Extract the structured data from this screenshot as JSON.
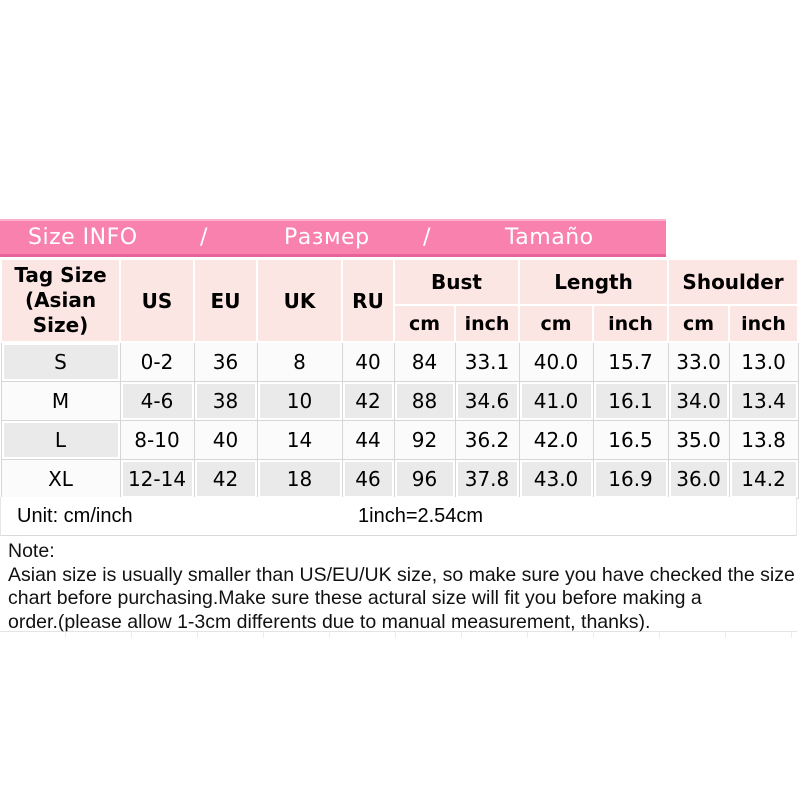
{
  "title_bar": {
    "segments": [
      "Size INFO",
      "/",
      "Размер",
      "/",
      "Tamaño"
    ]
  },
  "table": {
    "header": {
      "tag_size_line1": "Tag Size",
      "tag_size_line2": "(Asian Size)",
      "size_cols": [
        "US",
        "EU",
        "UK",
        "RU"
      ],
      "measure_groups": [
        "Bust",
        "Length",
        "Shoulder"
      ],
      "unit_cols": [
        "cm",
        "inch",
        "cm",
        "inch",
        "cm",
        "inch"
      ]
    },
    "rows": [
      {
        "tag": "S",
        "values": [
          "0-2",
          "36",
          "8",
          "40",
          "84",
          "33.1",
          "40.0",
          "15.7",
          "33.0",
          "13.0"
        ]
      },
      {
        "tag": "M",
        "values": [
          "4-6",
          "38",
          "10",
          "42",
          "88",
          "34.6",
          "41.0",
          "16.1",
          "34.0",
          "13.4"
        ]
      },
      {
        "tag": "L",
        "values": [
          "8-10",
          "40",
          "14",
          "44",
          "92",
          "36.2",
          "42.0",
          "16.5",
          "35.0",
          "13.8"
        ]
      },
      {
        "tag": "XL",
        "values": [
          "12-14",
          "42",
          "18",
          "46",
          "96",
          "37.8",
          "43.0",
          "16.9",
          "36.0",
          "14.2"
        ]
      }
    ]
  },
  "unit_row": {
    "unit_label": "Unit: cm/inch",
    "conversion": "1inch=2.54cm"
  },
  "note": {
    "heading": "Note:",
    "lines": [
      "Asian size is usually smaller than US/EU/UK size, so make sure you have checked the size",
      "chart before purchasing.Make sure these actural size will fit you before making a",
      "order.(please allow 1-3cm differents due to manual measurement, thanks)."
    ]
  },
  "colors": {
    "title_bar_pink": "#F981AD",
    "title_bar_top_edge": "#FBB0CD",
    "title_bar_bottom_edge": "#E7639A",
    "header_cell_pink": "#FCE6E3",
    "shaded_cell_gray": "#EAEAEB",
    "plain_cell_white": "#FBFBFB",
    "grid_border": "#D6D6D6",
    "text": "#000000"
  },
  "chart_data": {
    "type": "table",
    "title": "Size INFO / Размер / Tamaño",
    "columns": [
      "Tag Size (Asian Size)",
      "US",
      "EU",
      "UK",
      "RU",
      "Bust cm",
      "Bust inch",
      "Length cm",
      "Length inch",
      "Shoulder cm",
      "Shoulder inch"
    ],
    "rows": [
      [
        "S",
        "0-2",
        "36",
        "8",
        "40",
        "84",
        "33.1",
        "40.0",
        "15.7",
        "33.0",
        "13.0"
      ],
      [
        "M",
        "4-6",
        "38",
        "10",
        "42",
        "88",
        "34.6",
        "41.0",
        "16.1",
        "34.0",
        "13.4"
      ],
      [
        "L",
        "8-10",
        "40",
        "14",
        "44",
        "92",
        "36.2",
        "42.0",
        "16.5",
        "35.0",
        "13.8"
      ],
      [
        "XL",
        "12-14",
        "42",
        "18",
        "46",
        "96",
        "37.8",
        "43.0",
        "16.9",
        "36.0",
        "14.2"
      ]
    ],
    "footnotes": [
      "Unit: cm/inch",
      "1inch=2.54cm"
    ]
  }
}
